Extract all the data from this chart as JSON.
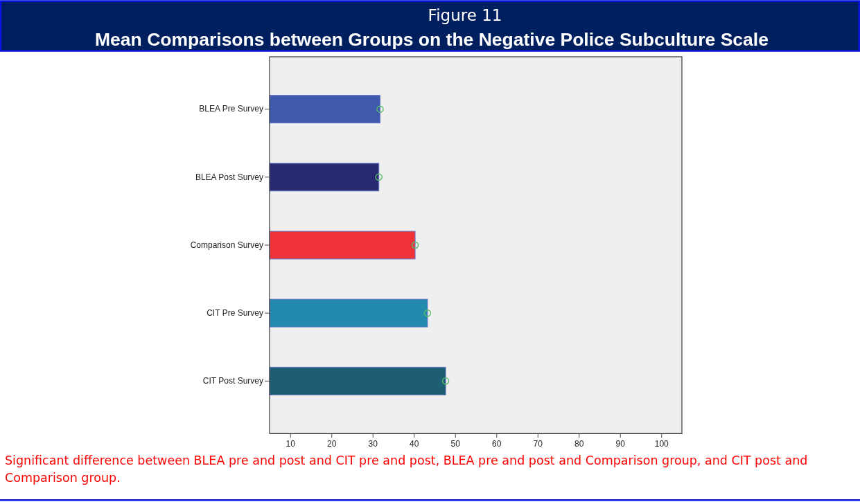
{
  "chart_data": {
    "type": "bar",
    "orientation": "horizontal",
    "title": "Figure 11",
    "subtitle": "Mean Comparisons between Groups on the Negative Police Subculture Scale",
    "categories": [
      "BLEA Pre Survey",
      "BLEA Post Survey",
      "Comparison Survey",
      "CIT Pre Survey",
      "CIT Post Survey"
    ],
    "series": [
      {
        "colors": [
          "#3f59ad",
          "#292a72",
          "#ef3339",
          "#248aad",
          "#1d5e74"
        ],
        "values": [
          31.8,
          31.5,
          40.3,
          43.3,
          47.7
        ]
      },
      {
        "type": "scatter",
        "marker": "circle",
        "color": "#55bb66",
        "x": [
          "BLEA Pre Survey",
          "BLEA Post Survey",
          "Comparison Survey",
          "CIT Pre Survey",
          "CIT Post Survey"
        ],
        "values": [
          31.8,
          31.5,
          40.3,
          43.3,
          47.7
        ]
      }
    ],
    "xlim": [
      5,
      105
    ],
    "xticks": [
      10,
      20,
      30,
      40,
      50,
      60,
      70,
      80,
      90,
      100
    ],
    "annotations": [
      "Significant difference between BLEA pre and post and CIT pre and post, BLEA pre and post and Comparison group, and CIT post and Comparison group."
    ]
  }
}
